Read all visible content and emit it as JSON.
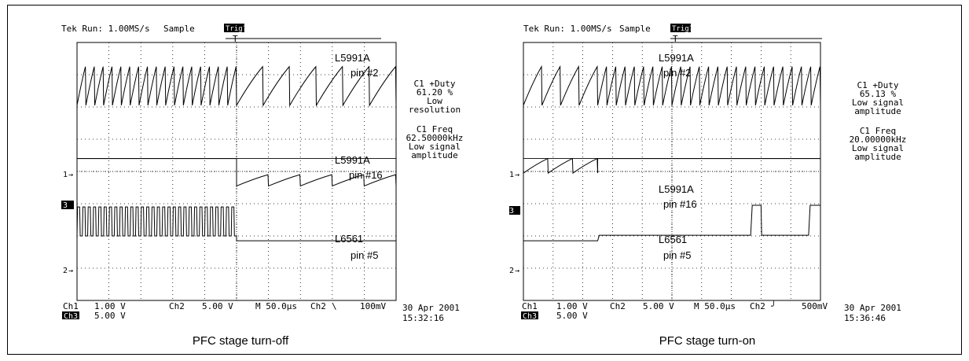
{
  "frame_border_color": "#000000",
  "trace_color": "#000000",
  "chart_data": [
    {
      "type": "line",
      "caption": "PFC stage turn-off",
      "header": {
        "run": "Tek Run: 1.00MS/s",
        "mode": "Sample",
        "trig": "Trig?",
        "trig_marker": "T"
      },
      "grid": true,
      "grid_divisions": {
        "x": 10,
        "y": 8
      },
      "trace_labels": [
        {
          "line1": "L5991A",
          "line2": "pin #2"
        },
        {
          "line1": "L5991A",
          "line2": "pin #16"
        },
        {
          "line1": "L6561",
          "line2": "pin #5"
        }
      ],
      "channel_markers": {
        "ch1": "1",
        "ch3": "3",
        "ch2": "2"
      },
      "measurements": [
        {
          "lines": [
            "C1 +Duty",
            "61.20 %",
            "Low",
            "resolution"
          ]
        },
        {
          "lines": [
            "C1 Freq",
            "62.50000kHz",
            "Low signal",
            "amplitude"
          ]
        }
      ],
      "footer": {
        "ch1_label": "Ch1",
        "ch1_scale": "1.00 V",
        "ch2_label": "Ch2",
        "ch2_scale": "5.00 V",
        "ch3_label": "Ch3",
        "ch3_scale": "5.00 V",
        "timebase": "M 50.0µs",
        "trigger_source": "Ch2",
        "trigger_slope": "\\",
        "trigger_level": "100mV"
      },
      "date": "30 Apr 2001",
      "time": "15:32:16",
      "transition_division": 5,
      "series": [
        {
          "channel": "Ch1",
          "description": "pin #2 sawtooth",
          "cycles_before": 18,
          "cycles_after": 6
        },
        {
          "channel": "Ch3",
          "description": "pin #16 ramp after transition",
          "cycles_after": 5
        },
        {
          "channel": "Ch2",
          "description": "pin #5 switching before transition",
          "cycles_before": 30
        }
      ]
    },
    {
      "type": "line",
      "caption": "PFC stage turn-on",
      "header": {
        "run": "Tek Run: 1.00MS/s",
        "mode": "Sample",
        "trig": "Trig?",
        "trig_marker": "T"
      },
      "grid": true,
      "grid_divisions": {
        "x": 10,
        "y": 8
      },
      "trace_labels": [
        {
          "line1": "L5991A",
          "line2": "pin #2"
        },
        {
          "line1": "L5991A",
          "line2": "pin #16"
        },
        {
          "line1": "L6561",
          "line2": "pin #5"
        }
      ],
      "channel_markers": {
        "ch1": "1",
        "ch3": "3",
        "ch2": "2"
      },
      "measurements": [
        {
          "lines": [
            "C1 +Duty",
            "65.13 %",
            "Low signal",
            "amplitude"
          ]
        },
        {
          "lines": [
            "C1 Freq",
            "20.00000kHz",
            "Low signal",
            "amplitude"
          ]
        }
      ],
      "footer": {
        "ch1_label": "Ch1",
        "ch1_scale": "1.00 V",
        "ch2_label": "Ch2",
        "ch2_scale": "5.00 V",
        "ch3_label": "Ch3",
        "ch3_scale": "5.00 V",
        "timebase": "M 50.0µs",
        "trigger_source": "Ch2",
        "trigger_slope": "╯",
        "trigger_level": "500mV"
      },
      "date": "30 Apr 2001",
      "time": "15:36:46",
      "transition_division": 2.5,
      "series": [
        {
          "channel": "Ch1",
          "description": "pin #2 sawtooth",
          "cycles_before": 4,
          "cycles_after": 24
        },
        {
          "channel": "Ch3",
          "description": "pin #16 ramp before transition",
          "cycles_before": 3
        },
        {
          "channel": "Ch2",
          "description": "pin #5 pulses after transition",
          "pulses": 2
        }
      ]
    }
  ]
}
